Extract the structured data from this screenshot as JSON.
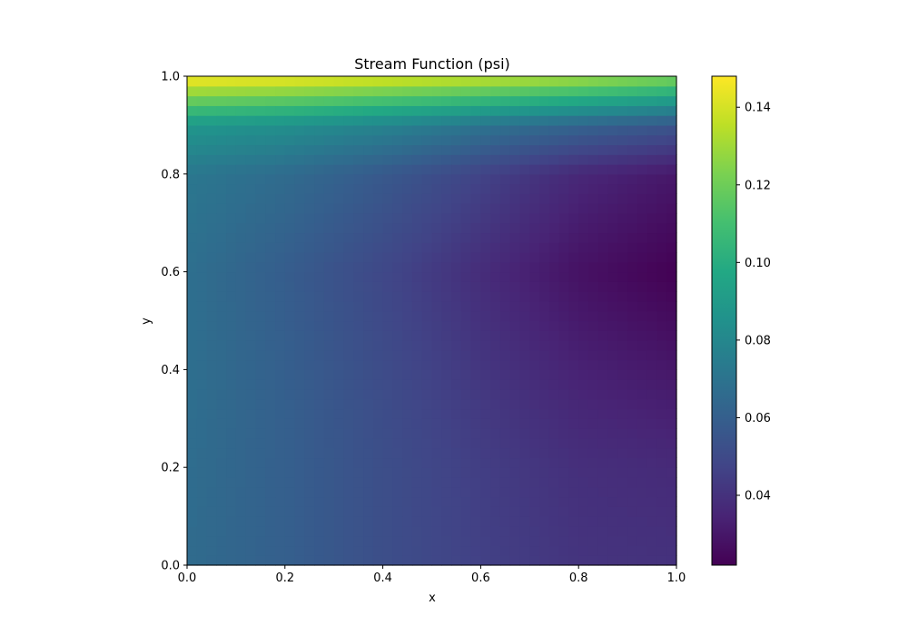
{
  "chart_data": {
    "type": "heatmap",
    "title": "Stream Function (psi)",
    "xlabel": "x",
    "ylabel": "y",
    "xlim": [
      0.0,
      1.0
    ],
    "ylim": [
      0.0,
      1.0
    ],
    "grid": false,
    "colormap": "viridis",
    "grid_resolution": [
      50,
      50
    ],
    "x_ticks": [
      "0.0",
      "0.2",
      "0.4",
      "0.6",
      "0.8",
      "1.0"
    ],
    "y_ticks": [
      "0.0",
      "0.2",
      "0.4",
      "0.6",
      "0.8",
      "1.0"
    ],
    "colorbar": {
      "range": [
        0.022,
        0.148
      ],
      "ticks": [
        "0.04",
        "0.06",
        "0.08",
        "0.10",
        "0.12",
        "0.14"
      ]
    },
    "field_samples": {
      "description": "psi values sampled at (x, y)",
      "x": [
        0.0,
        0.2,
        0.4,
        0.6,
        0.8,
        1.0
      ],
      "y": [
        0.0,
        0.2,
        0.4,
        0.6,
        0.8,
        0.9,
        1.0
      ],
      "values": [
        [
          0.066,
          0.06,
          0.052,
          0.046,
          0.041,
          0.04
        ],
        [
          0.067,
          0.06,
          0.052,
          0.045,
          0.039,
          0.037
        ],
        [
          0.068,
          0.06,
          0.051,
          0.042,
          0.034,
          0.03
        ],
        [
          0.068,
          0.059,
          0.049,
          0.038,
          0.028,
          0.022
        ],
        [
          0.072,
          0.066,
          0.057,
          0.047,
          0.036,
          0.03
        ],
        [
          0.088,
          0.084,
          0.078,
          0.07,
          0.062,
          0.055
        ],
        [
          0.148,
          0.146,
          0.142,
          0.138,
          0.132,
          0.124
        ]
      ]
    }
  }
}
